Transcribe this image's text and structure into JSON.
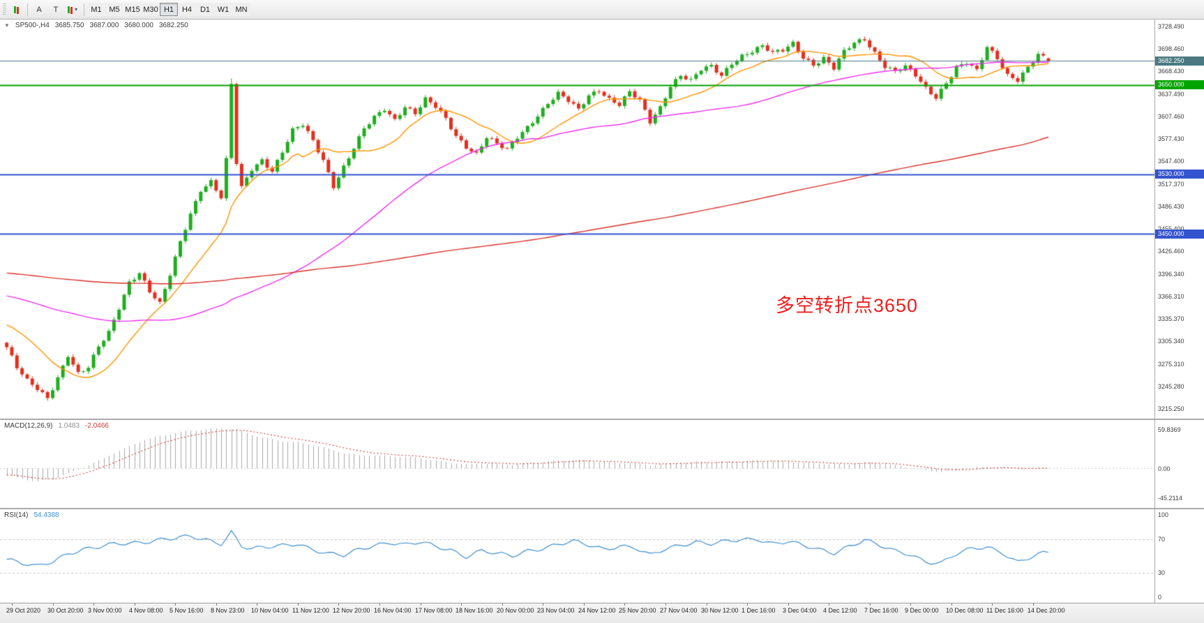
{
  "toolbar": {
    "caret": "▾",
    "tools": [
      {
        "name": "arrow-tool",
        "glyph": "A"
      },
      {
        "name": "text-tool",
        "glyph": "T"
      },
      {
        "name": "objects-dropdown",
        "glyph": "▾"
      }
    ],
    "timeframes": [
      {
        "label": "M1",
        "active": false
      },
      {
        "label": "M5",
        "active": false
      },
      {
        "label": "M15",
        "active": false
      },
      {
        "label": "M30",
        "active": false
      },
      {
        "label": "H1",
        "active": true
      },
      {
        "label": "H4",
        "active": false
      },
      {
        "label": "D1",
        "active": false
      },
      {
        "label": "W1",
        "active": false
      },
      {
        "label": "MN",
        "active": false
      }
    ]
  },
  "chart": {
    "collapse_glyph": "▼",
    "symbol_period": "SP500-,H4",
    "ohlc": {
      "open": "3685.750",
      "high": "3687.000",
      "low": "3680.000",
      "close": "3682.250"
    },
    "annotation": {
      "text": "多空转折点3650",
      "color": "#ef1d1d"
    },
    "levels": [
      {
        "name": "current-price",
        "price": 3682.25,
        "label": "3682.250",
        "color": "#4a7a80",
        "width": 1.2
      },
      {
        "name": "level-3650",
        "price": 3650.0,
        "label": "3650.000",
        "color": "#00a400",
        "width": 2
      },
      {
        "name": "level-3530",
        "price": 3530.0,
        "label": "3530.000",
        "color": "#3353cf",
        "width": 2
      },
      {
        "name": "level-3450",
        "price": 3450.0,
        "label": "3450.000",
        "color": "#3353cf",
        "width": 2
      }
    ],
    "price_axis": {
      "min": 3215.25,
      "max": 3728.49,
      "labels": [
        "3728.490",
        "3698.460",
        "3668.430",
        "3637.490",
        "3607.460",
        "3577.430",
        "3547.400",
        "3517.370",
        "3486.430",
        "3455.400",
        "3426.460",
        "3396.340",
        "3366.310",
        "3335.370",
        "3305.340",
        "3275.310",
        "3245.280",
        "3215.250"
      ]
    },
    "time_axis": {
      "labels": [
        "29 Oct 2020",
        "30 Oct 20:00",
        "3 Nov 00:00",
        "4 Nov 08:00",
        "5 Nov 16:00",
        "8 Nov 23:00",
        "10 Nov 04:00",
        "11 Nov 12:00",
        "12 Nov 20:00",
        "16 Nov 04:00",
        "17 Nov 08:00",
        "18 Nov 16:00",
        "20 Nov 00:00",
        "23 Nov 04:00",
        "24 Nov 12:00",
        "25 Nov 20:00",
        "27 Nov 04:00",
        "30 Nov 12:00",
        "1 Dec 16:00",
        "3 Dec 04:00",
        "4 Dec 12:00",
        "7 Dec 16:00",
        "9 Dec 00:00",
        "10 Dec 08:00",
        "11 Dec 16:00",
        "14 Dec 20:00"
      ]
    }
  },
  "indicators": {
    "macd": {
      "name": "MACD(12,26,9)",
      "value_main": "1.0483",
      "value_signal": "-2.0466",
      "scale": [
        {
          "label": "59.8369",
          "value": 59.8369
        },
        {
          "label": "0.00",
          "value": 0
        },
        {
          "label": "-45.2114",
          "value": -45.2114
        }
      ]
    },
    "rsi": {
      "name": "RSI(14)",
      "value": "54.4388",
      "scale": [
        {
          "label": "100",
          "value": 100
        },
        {
          "label": "70",
          "value": 70
        },
        {
          "label": "30",
          "value": 30
        },
        {
          "label": "0",
          "value": 0
        }
      ],
      "levels": [
        70,
        30
      ]
    }
  },
  "colors": {
    "candle_up": "#1fae1f",
    "candle_down": "#e2301f",
    "macd_hist": "#a9a9a9",
    "macd_signal": "#cc3b32",
    "rsi_line": "#3e8ed0",
    "dash_level": "#c4c4c4"
  },
  "chart_data": {
    "type": "candlestick",
    "symbol": "SP500-",
    "period": "H4",
    "bars": 205,
    "last_candle": [
      3685.75,
      3687.0,
      3680.0,
      3682.25
    ],
    "price_path": [
      [
        0,
        3298
      ],
      [
        2,
        3270
      ],
      [
        4,
        3252
      ],
      [
        6,
        3242
      ],
      [
        8,
        3230
      ],
      [
        10,
        3258
      ],
      [
        12,
        3288
      ],
      [
        14,
        3262
      ],
      [
        16,
        3270
      ],
      [
        18,
        3298
      ],
      [
        20,
        3318
      ],
      [
        22,
        3352
      ],
      [
        24,
        3386
      ],
      [
        26,
        3398
      ],
      [
        28,
        3372
      ],
      [
        30,
        3355
      ],
      [
        32,
        3395
      ],
      [
        34,
        3440
      ],
      [
        36,
        3478
      ],
      [
        38,
        3510
      ],
      [
        40,
        3520
      ],
      [
        42,
        3498
      ],
      [
        43,
        3548
      ],
      [
        44,
        3650
      ],
      [
        45,
        3545
      ],
      [
        46,
        3512
      ],
      [
        48,
        3538
      ],
      [
        50,
        3550
      ],
      [
        52,
        3535
      ],
      [
        54,
        3560
      ],
      [
        56,
        3588
      ],
      [
        58,
        3596
      ],
      [
        60,
        3575
      ],
      [
        62,
        3550
      ],
      [
        64,
        3515
      ],
      [
        66,
        3540
      ],
      [
        68,
        3565
      ],
      [
        70,
        3590
      ],
      [
        72,
        3606
      ],
      [
        74,
        3618
      ],
      [
        76,
        3604
      ],
      [
        78,
        3622
      ],
      [
        80,
        3612
      ],
      [
        82,
        3630
      ],
      [
        84,
        3620
      ],
      [
        86,
        3604
      ],
      [
        88,
        3582
      ],
      [
        90,
        3568
      ],
      [
        92,
        3558
      ],
      [
        94,
        3580
      ],
      [
        96,
        3570
      ],
      [
        98,
        3562
      ],
      [
        100,
        3580
      ],
      [
        102,
        3594
      ],
      [
        104,
        3610
      ],
      [
        106,
        3626
      ],
      [
        108,
        3638
      ],
      [
        110,
        3628
      ],
      [
        112,
        3616
      ],
      [
        114,
        3636
      ],
      [
        116,
        3644
      ],
      [
        118,
        3632
      ],
      [
        120,
        3624
      ],
      [
        122,
        3640
      ],
      [
        124,
        3628
      ],
      [
        126,
        3600
      ],
      [
        128,
        3620
      ],
      [
        130,
        3650
      ],
      [
        132,
        3664
      ],
      [
        134,
        3656
      ],
      [
        136,
        3670
      ],
      [
        138,
        3674
      ],
      [
        140,
        3662
      ],
      [
        142,
        3680
      ],
      [
        144,
        3690
      ],
      [
        146,
        3696
      ],
      [
        148,
        3702
      ],
      [
        150,
        3692
      ],
      [
        152,
        3696
      ],
      [
        154,
        3706
      ],
      [
        156,
        3688
      ],
      [
        158,
        3678
      ],
      [
        160,
        3686
      ],
      [
        162,
        3672
      ],
      [
        164,
        3694
      ],
      [
        166,
        3706
      ],
      [
        168,
        3712
      ],
      [
        170,
        3694
      ],
      [
        172,
        3676
      ],
      [
        174,
        3668
      ],
      [
        176,
        3674
      ],
      [
        178,
        3662
      ],
      [
        180,
        3645
      ],
      [
        182,
        3634
      ],
      [
        184,
        3654
      ],
      [
        186,
        3674
      ],
      [
        188,
        3680
      ],
      [
        190,
        3668
      ],
      [
        192,
        3700
      ],
      [
        194,
        3686
      ],
      [
        196,
        3664
      ],
      [
        198,
        3658
      ],
      [
        200,
        3674
      ],
      [
        202,
        3690
      ],
      [
        204,
        3682.25
      ]
    ],
    "mas": [
      {
        "name": "ma-fast",
        "window": 14,
        "pre": 3330,
        "color": "#ff9300"
      },
      {
        "name": "ma-mid",
        "window": 60,
        "pre": 3368,
        "color": "#ee2fee"
      },
      {
        "name": "ma-slow",
        "window": 200,
        "pre": 3398,
        "color": "#d8312b"
      }
    ],
    "macd_path": [
      [
        0,
        -10
      ],
      [
        3,
        -16
      ],
      [
        6,
        -20
      ],
      [
        9,
        -16
      ],
      [
        12,
        -8
      ],
      [
        15,
        2
      ],
      [
        18,
        12
      ],
      [
        21,
        24
      ],
      [
        24,
        34
      ],
      [
        27,
        44
      ],
      [
        30,
        50
      ],
      [
        33,
        55
      ],
      [
        36,
        58
      ],
      [
        39,
        60
      ],
      [
        42,
        62
      ],
      [
        45,
        60
      ],
      [
        48,
        52
      ],
      [
        51,
        46
      ],
      [
        54,
        42
      ],
      [
        57,
        40
      ],
      [
        60,
        36
      ],
      [
        63,
        30
      ],
      [
        66,
        24
      ],
      [
        69,
        20
      ],
      [
        72,
        20
      ],
      [
        75,
        19
      ],
      [
        78,
        18
      ],
      [
        81,
        16
      ],
      [
        84,
        12
      ],
      [
        87,
        9
      ],
      [
        90,
        6
      ],
      [
        93,
        8
      ],
      [
        96,
        7
      ],
      [
        99,
        6
      ],
      [
        102,
        8
      ],
      [
        105,
        10
      ],
      [
        108,
        12
      ],
      [
        111,
        13
      ],
      [
        114,
        12
      ],
      [
        117,
        10
      ],
      [
        120,
        9
      ],
      [
        123,
        8
      ],
      [
        126,
        5
      ],
      [
        129,
        7
      ],
      [
        132,
        9
      ],
      [
        135,
        10
      ],
      [
        138,
        10
      ],
      [
        141,
        10
      ],
      [
        144,
        11
      ],
      [
        147,
        12
      ],
      [
        150,
        12
      ],
      [
        153,
        11
      ],
      [
        156,
        9
      ],
      [
        159,
        8
      ],
      [
        162,
        6
      ],
      [
        165,
        7
      ],
      [
        168,
        9
      ],
      [
        171,
        8
      ],
      [
        174,
        5
      ],
      [
        177,
        1
      ],
      [
        180,
        -3
      ],
      [
        183,
        -5
      ],
      [
        186,
        -3
      ],
      [
        189,
        1
      ],
      [
        192,
        3
      ],
      [
        195,
        2
      ],
      [
        198,
        -1
      ],
      [
        201,
        0
      ],
      [
        204,
        1
      ]
    ],
    "rsi_path": [
      [
        0,
        46
      ],
      [
        3,
        40
      ],
      [
        6,
        37
      ],
      [
        9,
        44
      ],
      [
        12,
        54
      ],
      [
        15,
        58
      ],
      [
        18,
        60
      ],
      [
        21,
        64
      ],
      [
        24,
        66
      ],
      [
        27,
        68
      ],
      [
        30,
        70
      ],
      [
        33,
        71
      ],
      [
        36,
        73
      ],
      [
        39,
        70
      ],
      [
        42,
        66
      ],
      [
        44,
        80
      ],
      [
        46,
        62
      ],
      [
        48,
        58
      ],
      [
        51,
        60
      ],
      [
        54,
        63
      ],
      [
        57,
        66
      ],
      [
        60,
        58
      ],
      [
        63,
        52
      ],
      [
        66,
        50
      ],
      [
        69,
        58
      ],
      [
        72,
        64
      ],
      [
        75,
        67
      ],
      [
        78,
        63
      ],
      [
        81,
        66
      ],
      [
        84,
        62
      ],
      [
        87,
        58
      ],
      [
        90,
        50
      ],
      [
        93,
        56
      ],
      [
        96,
        52
      ],
      [
        99,
        50
      ],
      [
        102,
        57
      ],
      [
        105,
        60
      ],
      [
        108,
        64
      ],
      [
        111,
        67
      ],
      [
        114,
        63
      ],
      [
        117,
        59
      ],
      [
        120,
        63
      ],
      [
        123,
        60
      ],
      [
        126,
        50
      ],
      [
        129,
        58
      ],
      [
        132,
        64
      ],
      [
        135,
        68
      ],
      [
        138,
        65
      ],
      [
        141,
        67
      ],
      [
        144,
        69
      ],
      [
        147,
        71
      ],
      [
        150,
        66
      ],
      [
        153,
        68
      ],
      [
        156,
        62
      ],
      [
        159,
        57
      ],
      [
        162,
        54
      ],
      [
        165,
        63
      ],
      [
        168,
        70
      ],
      [
        171,
        62
      ],
      [
        174,
        55
      ],
      [
        177,
        52
      ],
      [
        180,
        44
      ],
      [
        183,
        42
      ],
      [
        186,
        52
      ],
      [
        189,
        58
      ],
      [
        192,
        61
      ],
      [
        195,
        55
      ],
      [
        198,
        43
      ],
      [
        201,
        49
      ],
      [
        204,
        54.44
      ]
    ]
  }
}
